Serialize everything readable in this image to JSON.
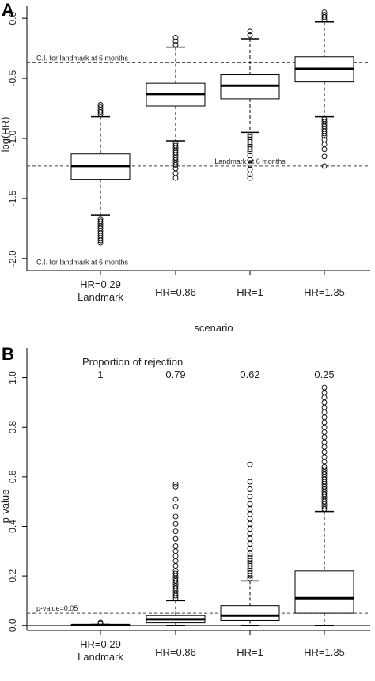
{
  "chart_data": [
    {
      "panel_label": "A",
      "type": "box",
      "xlabel": "scenario",
      "ylabel": "log(HR)",
      "ylim": [
        -2.1,
        0.1
      ],
      "yticks": [
        "0.0",
        "-0.5",
        "-1.0",
        "-1.5",
        "-2.0"
      ],
      "ytick_values": [
        0.0,
        -0.5,
        -1.0,
        -1.5,
        -2.0
      ],
      "categories": [
        {
          "line1": "HR=0.29",
          "line2": "Landmark"
        },
        {
          "line1": "",
          "line2": "HR=0.86"
        },
        {
          "line1": "",
          "line2": "HR=1"
        },
        {
          "line1": "",
          "line2": "HR=1.35"
        }
      ],
      "boxes": [
        {
          "whisker_low": -1.64,
          "q1": -1.34,
          "median": -1.23,
          "q3": -1.13,
          "whisker_high": -0.82,
          "outliers_low": [
            -1.67,
            -1.69,
            -1.71,
            -1.73,
            -1.75,
            -1.77,
            -1.79,
            -1.81,
            -1.83,
            -1.85,
            -1.87
          ],
          "outliers_high": [
            -0.8,
            -0.78,
            -0.76,
            -0.74,
            -0.72
          ]
        },
        {
          "whisker_low": -1.02,
          "q1": -0.73,
          "median": -0.63,
          "q3": -0.54,
          "whisker_high": -0.24,
          "outliers_low": [
            -1.04,
            -1.06,
            -1.08,
            -1.1,
            -1.12,
            -1.14,
            -1.16,
            -1.18,
            -1.2,
            -1.22,
            -1.25,
            -1.29,
            -1.33
          ],
          "outliers_high": [
            -0.22,
            -0.19,
            -0.16
          ]
        },
        {
          "whisker_low": -0.95,
          "q1": -0.67,
          "median": -0.56,
          "q3": -0.47,
          "whisker_high": -0.17,
          "outliers_low": [
            -0.97,
            -0.99,
            -1.01,
            -1.03,
            -1.05,
            -1.07,
            -1.09,
            -1.11,
            -1.14,
            -1.18,
            -1.22,
            -1.26,
            -1.3,
            -1.33
          ],
          "outliers_high": [
            -0.14,
            -0.11
          ]
        },
        {
          "whisker_low": -0.82,
          "q1": -0.53,
          "median": -0.42,
          "q3": -0.32,
          "whisker_high": -0.03,
          "outliers_low": [
            -0.84,
            -0.86,
            -0.88,
            -0.9,
            -0.92,
            -0.94,
            -0.96,
            -0.98,
            -1.01,
            -1.05,
            -1.09,
            -1.15,
            -1.23
          ],
          "outliers_high": [
            -0.01,
            0.01,
            0.03,
            0.05
          ]
        }
      ],
      "reference_lines": [
        {
          "y": -0.37,
          "label": "C.I. for landmark at 6 months",
          "label_pos": "left"
        },
        {
          "y": -1.23,
          "label": "Landmark at 6 months",
          "label_pos": "center"
        },
        {
          "y": -2.07,
          "label": "C.I. for landmark at 6 months",
          "label_pos": "left"
        }
      ]
    },
    {
      "panel_label": "B",
      "type": "box",
      "xlabel": "scenario",
      "ylabel": "p-value",
      "ylim": [
        -0.02,
        1.12
      ],
      "yticks": [
        "0.0",
        "0.2",
        "0.4",
        "0.6",
        "0.8",
        "1.0"
      ],
      "ytick_values": [
        0.0,
        0.2,
        0.4,
        0.6,
        0.8,
        1.0
      ],
      "annotation_title": "Proportion of rejection",
      "proportions": [
        "1",
        "0.79",
        "0.62",
        "0.25"
      ],
      "categories": [
        {
          "line1": "HR=0.29",
          "line2": "Landmark"
        },
        {
          "line1": "",
          "line2": "HR=0.86"
        },
        {
          "line1": "",
          "line2": "HR=1"
        },
        {
          "line1": "",
          "line2": "HR=1.35"
        }
      ],
      "boxes": [
        {
          "whisker_low": 0.0,
          "q1": 0.0,
          "median": 0.001,
          "q3": 0.002,
          "whisker_high": 0.004,
          "outliers_low": [],
          "outliers_high": [
            0.008,
            0.012
          ]
        },
        {
          "whisker_low": 0.0,
          "q1": 0.01,
          "median": 0.025,
          "q3": 0.04,
          "whisker_high": 0.1,
          "outliers_low": [],
          "outliers_high": [
            0.11,
            0.12,
            0.13,
            0.14,
            0.15,
            0.16,
            0.17,
            0.18,
            0.19,
            0.2,
            0.21,
            0.22,
            0.24,
            0.26,
            0.28,
            0.3,
            0.32,
            0.35,
            0.38,
            0.41,
            0.44,
            0.48,
            0.51,
            0.56,
            0.57
          ]
        },
        {
          "whisker_low": 0.0,
          "q1": 0.02,
          "median": 0.04,
          "q3": 0.08,
          "whisker_high": 0.18,
          "outliers_low": [],
          "outliers_high": [
            0.19,
            0.2,
            0.21,
            0.22,
            0.23,
            0.24,
            0.25,
            0.26,
            0.27,
            0.28,
            0.29,
            0.31,
            0.33,
            0.35,
            0.37,
            0.39,
            0.41,
            0.43,
            0.45,
            0.47,
            0.49,
            0.52,
            0.55,
            0.58,
            0.65
          ]
        },
        {
          "whisker_low": 0.0,
          "q1": 0.05,
          "median": 0.11,
          "q3": 0.22,
          "whisker_high": 0.46,
          "outliers_low": [],
          "outliers_high": [
            0.47,
            0.48,
            0.49,
            0.5,
            0.51,
            0.52,
            0.53,
            0.54,
            0.55,
            0.56,
            0.57,
            0.58,
            0.59,
            0.6,
            0.61,
            0.62,
            0.63,
            0.64,
            0.66,
            0.68,
            0.7,
            0.72,
            0.74,
            0.76,
            0.78,
            0.8,
            0.82,
            0.84,
            0.86,
            0.88,
            0.9,
            0.92,
            0.94,
            0.96
          ]
        }
      ],
      "reference_lines": [
        {
          "y": 0.05,
          "label": "p-value=0.05",
          "label_pos": "left",
          "style": "dashed"
        },
        {
          "y": 0.0,
          "label": "",
          "style": "solid"
        }
      ]
    }
  ]
}
